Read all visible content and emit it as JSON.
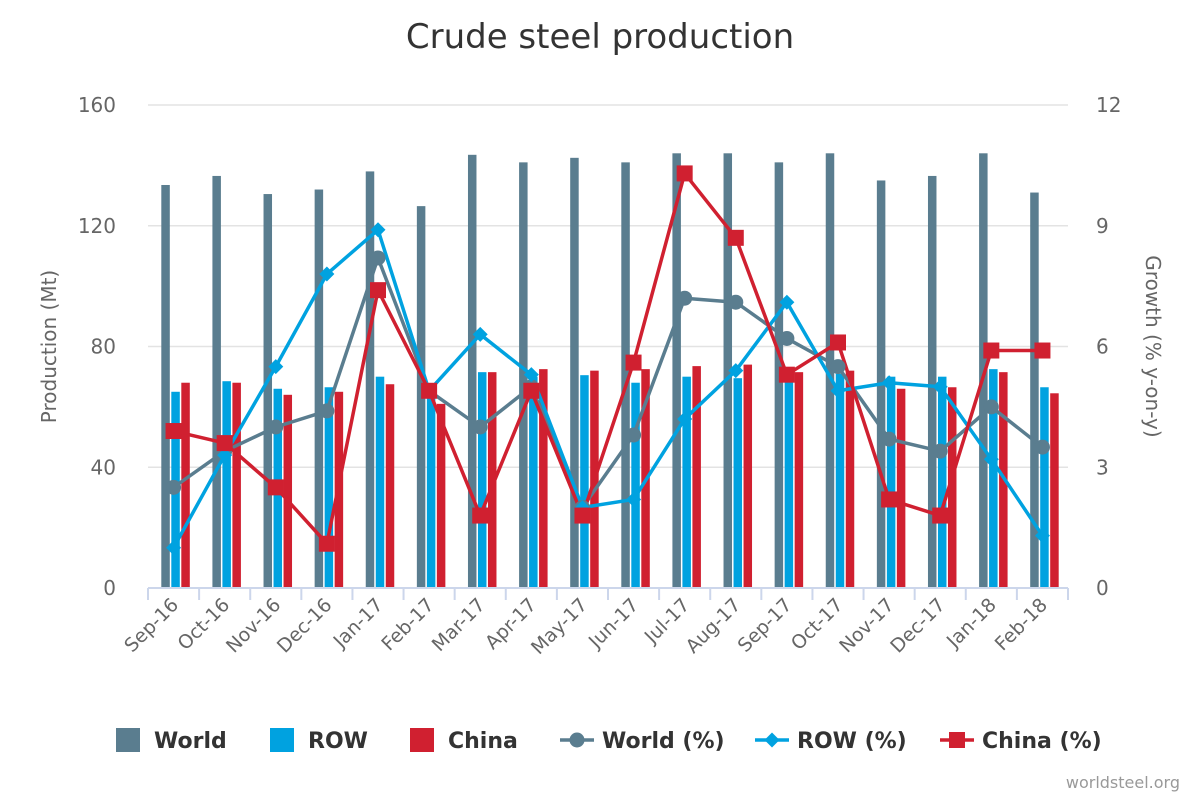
{
  "chart_data": {
    "type": "bar",
    "title": "Crude steel production",
    "categories": [
      "Sep-16",
      "Oct-16",
      "Nov-16",
      "Dec-16",
      "Jan-17",
      "Feb-17",
      "Mar-17",
      "Apr-17",
      "May-17",
      "Jun-17",
      "Jul-17",
      "Aug-17",
      "Sep-17",
      "Oct-17",
      "Nov-17",
      "Dec-17",
      "Jan-18",
      "Feb-18"
    ],
    "ylabel": "Production (Mt)",
    "y2label": "Growth (% y-on-y)",
    "ylim": [
      0,
      160
    ],
    "y_ticks": [
      0,
      40,
      80,
      120,
      160
    ],
    "y2lim": [
      0,
      12
    ],
    "y2_ticks": [
      0,
      3,
      6,
      9,
      12
    ],
    "grid": true,
    "legend_position": "bottom",
    "series": [
      {
        "name": "World",
        "type": "bar",
        "axis": "left",
        "color": "#5a7d8f",
        "values": [
          133.5,
          136.5,
          130.5,
          132,
          138,
          126.5,
          143.5,
          141,
          142.5,
          141,
          144,
          144,
          141,
          144,
          135,
          136.5,
          144,
          131
        ]
      },
      {
        "name": "ROW",
        "type": "bar",
        "axis": "left",
        "color": "#00a2e0",
        "values": [
          65,
          68.5,
          66,
          66.5,
          70,
          63.5,
          71.5,
          70,
          70.5,
          68,
          70,
          69.5,
          69.5,
          71,
          70,
          70,
          72.5,
          66.5
        ]
      },
      {
        "name": "China",
        "type": "bar",
        "axis": "left",
        "color": "#d02030",
        "values": [
          68,
          68,
          64,
          65,
          67.5,
          61,
          71.5,
          72.5,
          72,
          72.5,
          73.5,
          74,
          71.5,
          72,
          66,
          66.5,
          71.5,
          64.5
        ]
      },
      {
        "name": "World (%)",
        "type": "line",
        "axis": "right",
        "marker": "circle",
        "color": "#5a7d8f",
        "values": [
          2.5,
          3.4,
          4.0,
          4.4,
          8.2,
          4.9,
          4.0,
          5.0,
          2.0,
          3.8,
          7.2,
          7.1,
          6.2,
          5.5,
          3.7,
          3.4,
          4.5,
          3.5
        ]
      },
      {
        "name": "ROW (%)",
        "type": "line",
        "axis": "right",
        "marker": "diamond",
        "color": "#00a2e0",
        "values": [
          1.0,
          3.3,
          5.5,
          7.8,
          8.9,
          4.9,
          6.3,
          5.3,
          2.0,
          2.2,
          4.2,
          5.4,
          7.1,
          4.9,
          5.1,
          5.0,
          3.2,
          1.3
        ]
      },
      {
        "name": "China (%)",
        "type": "line",
        "axis": "right",
        "marker": "square",
        "color": "#d02030",
        "values": [
          3.9,
          3.6,
          2.5,
          1.1,
          7.4,
          4.9,
          1.8,
          4.9,
          1.8,
          5.6,
          10.3,
          8.7,
          5.3,
          6.1,
          2.2,
          1.8,
          5.9,
          5.9
        ]
      }
    ],
    "credit": "worldsteel.org"
  }
}
